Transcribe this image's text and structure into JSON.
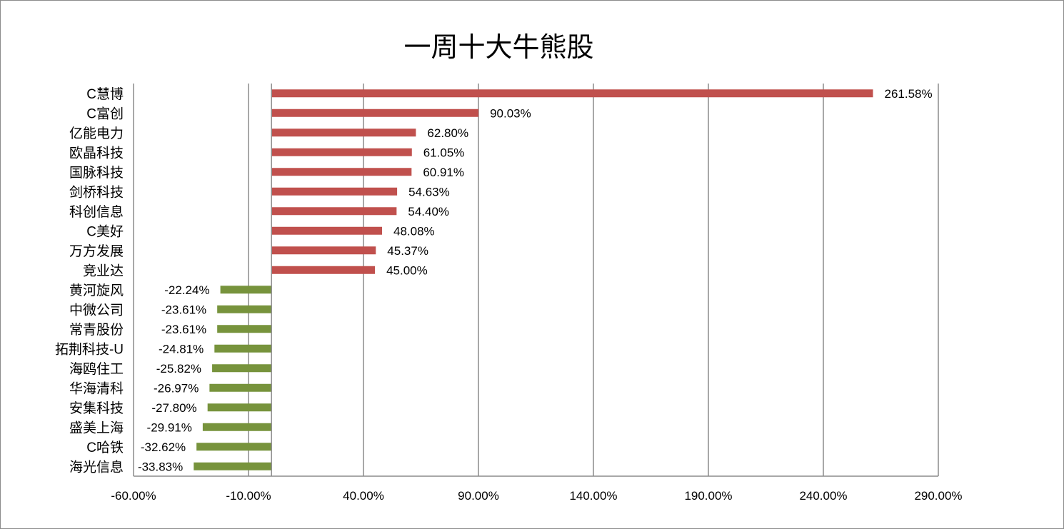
{
  "chart_data": {
    "type": "bar",
    "orientation": "horizontal",
    "title": "一周十大牛熊股",
    "xlabel": "",
    "ylabel": "",
    "xlim": [
      -60,
      290
    ],
    "x_ticks": [
      "-60.00%",
      "-10.00%",
      "40.00%",
      "90.00%",
      "140.00%",
      "190.00%",
      "240.00%",
      "290.00%"
    ],
    "grid": "vertical",
    "legend": "none",
    "colors": {
      "positive": "#c0504d",
      "negative": "#77933c",
      "grid": "#8c8c8c",
      "axis": "#8c8c8c"
    },
    "categories": [
      "C慧博",
      "C富创",
      "亿能电力",
      "欧晶科技",
      "国脉科技",
      "剑桥科技",
      "科创信息",
      "C美好",
      "万方发展",
      "竞业达",
      "黄河旋风",
      "中微公司",
      "常青股份",
      "拓荆科技-U",
      "海鸥住工",
      "华海清科",
      "安集科技",
      "盛美上海",
      "C哈铁",
      "海光信息"
    ],
    "values": [
      261.58,
      90.03,
      62.8,
      61.05,
      60.91,
      54.63,
      54.4,
      48.08,
      45.37,
      45.0,
      -22.24,
      -23.61,
      -23.61,
      -24.81,
      -25.82,
      -26.97,
      -27.8,
      -29.91,
      -32.62,
      -33.83
    ],
    "value_labels": [
      "261.58%",
      "90.03%",
      "62.80%",
      "61.05%",
      "60.91%",
      "54.63%",
      "54.40%",
      "48.08%",
      "45.37%",
      "45.00%",
      "-22.24%",
      "-23.61%",
      "-23.61%",
      "-24.81%",
      "-25.82%",
      "-26.97%",
      "-27.80%",
      "-29.91%",
      "-32.62%",
      "-33.83%"
    ]
  }
}
